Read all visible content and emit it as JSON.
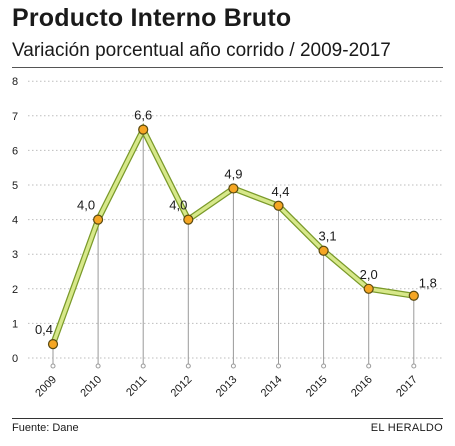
{
  "header": {
    "title": "Producto Interno Bruto",
    "subtitle": "Variación porcentual año corrido / 2009-2017"
  },
  "footer": {
    "source": "Fuente: Dane",
    "brand": "EL HERALDO"
  },
  "chart_data": {
    "type": "line",
    "title": "Producto Interno Bruto",
    "subtitle": "Variación porcentual año corrido / 2009-2017",
    "xlabel": "",
    "ylabel": "",
    "categories": [
      "2009",
      "2010",
      "2011",
      "2012",
      "2013",
      "2014",
      "2015",
      "2016",
      "2017"
    ],
    "series": [
      {
        "values": [
          0.4,
          4.0,
          6.6,
          4.0,
          4.9,
          4.4,
          3.1,
          2.0,
          1.8
        ]
      }
    ],
    "data_labels": [
      "0,4",
      "4,0",
      "6,6",
      "4,0",
      "4,9",
      "4,4",
      "3,1",
      "2,0",
      "1,8"
    ],
    "ylim": [
      0,
      8
    ],
    "yticks": [
      0,
      1,
      2,
      3,
      4,
      5,
      6,
      7,
      8
    ],
    "grid": "horizontal-dotted",
    "colors": {
      "line_fill": "#d7e88a",
      "line_edge": "#7a9a2a",
      "marker_fill": "#f5a623",
      "marker_edge": "#5a4a10",
      "drop_line": "#9a9a9a",
      "grid": "#bdbdbd"
    }
  }
}
